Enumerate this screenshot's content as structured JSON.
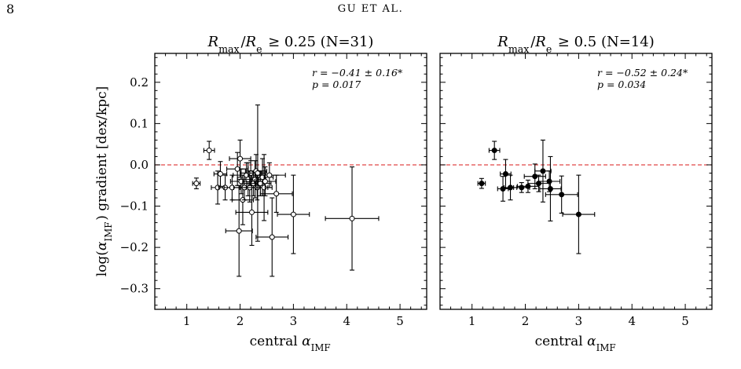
{
  "page": {
    "page_number": "8",
    "running_head": "GU ET AL."
  },
  "chart_data": [
    {
      "type": "scatter",
      "title": "R_max/R_e ≥ 0.25  (N=31)",
      "xlabel": "central α_IMF",
      "ylabel": "log(α_IMF) gradient [dex/kpc]",
      "xlim": [
        0.4,
        5.5
      ],
      "ylim": [
        -0.35,
        0.27
      ],
      "xticks": [
        1,
        2,
        3,
        4,
        5
      ],
      "yticks": [
        0.2,
        0.1,
        0.0,
        -0.1,
        -0.2,
        -0.3
      ],
      "ytick_labels": [
        "0.2",
        "0.1",
        "0.0",
        "−0.1",
        "−0.2",
        "−0.3"
      ],
      "reference_line": {
        "y": 0.0,
        "style": "dashed",
        "color": "#e04848"
      },
      "annotation": {
        "r_text": "r = −0.41 ± 0.16*",
        "p_text": "p = 0.017"
      },
      "marker": "open circle",
      "grid": false,
      "points": [
        {
          "x": 1.18,
          "y": -0.045,
          "xerr": 0.07,
          "yerr": 0.013
        },
        {
          "x": 1.42,
          "y": 0.035,
          "xerr": 0.1,
          "yerr": 0.022
        },
        {
          "x": 1.58,
          "y": -0.055,
          "xerr": 0.12,
          "yerr": 0.04
        },
        {
          "x": 1.63,
          "y": -0.022,
          "xerr": 0.12,
          "yerr": 0.03
        },
        {
          "x": 1.72,
          "y": -0.055,
          "xerr": 0.12,
          "yerr": 0.03
        },
        {
          "x": 1.85,
          "y": -0.055,
          "xerr": 0.15,
          "yerr": 0.03
        },
        {
          "x": 1.95,
          "y": -0.01,
          "xerr": 0.2,
          "yerr": 0.04
        },
        {
          "x": 1.98,
          "y": -0.16,
          "xerr": 0.25,
          "yerr": 0.11
        },
        {
          "x": 2.0,
          "y": 0.015,
          "xerr": 0.2,
          "yerr": 0.045
        },
        {
          "x": 2.02,
          "y": -0.04,
          "xerr": 0.2,
          "yerr": 0.03
        },
        {
          "x": 2.05,
          "y": -0.085,
          "xerr": 0.2,
          "yerr": 0.06
        },
        {
          "x": 2.08,
          "y": -0.055,
          "xerr": 0.2,
          "yerr": 0.03
        },
        {
          "x": 2.12,
          "y": -0.025,
          "xerr": 0.25,
          "yerr": 0.03
        },
        {
          "x": 2.15,
          "y": -0.035,
          "xerr": 0.2,
          "yerr": 0.04
        },
        {
          "x": 2.18,
          "y": -0.055,
          "xerr": 0.2,
          "yerr": 0.035
        },
        {
          "x": 2.2,
          "y": -0.02,
          "xerr": 0.2,
          "yerr": 0.03
        },
        {
          "x": 2.22,
          "y": -0.115,
          "xerr": 0.3,
          "yerr": 0.08
        },
        {
          "x": 2.25,
          "y": -0.045,
          "xerr": 0.2,
          "yerr": 0.03
        },
        {
          "x": 2.28,
          "y": -0.035,
          "xerr": 0.2,
          "yerr": 0.045
        },
        {
          "x": 2.3,
          "y": -0.015,
          "xerr": 0.2,
          "yerr": 0.04
        },
        {
          "x": 2.32,
          "y": -0.055,
          "xerr": 0.2,
          "yerr": 0.03
        },
        {
          "x": 2.33,
          "y": -0.02,
          "xerr": 0.15,
          "yerr": 0.165
        },
        {
          "x": 2.38,
          "y": -0.045,
          "xerr": 0.2,
          "yerr": 0.03
        },
        {
          "x": 2.42,
          "y": -0.03,
          "xerr": 0.2,
          "yerr": 0.045
        },
        {
          "x": 2.45,
          "y": -0.055,
          "xerr": 0.15,
          "yerr": 0.08
        },
        {
          "x": 2.47,
          "y": -0.04,
          "xerr": 0.2,
          "yerr": 0.035
        },
        {
          "x": 2.55,
          "y": -0.025,
          "xerr": 0.3,
          "yerr": 0.03
        },
        {
          "x": 2.6,
          "y": -0.175,
          "xerr": 0.3,
          "yerr": 0.095
        },
        {
          "x": 2.68,
          "y": -0.07,
          "xerr": 0.3,
          "yerr": 0.045
        },
        {
          "x": 3.0,
          "y": -0.12,
          "xerr": 0.3,
          "yerr": 0.095
        },
        {
          "x": 4.1,
          "y": -0.13,
          "xerr": 0.5,
          "yerr": 0.125
        }
      ]
    },
    {
      "type": "scatter",
      "title": "R_max/R_e ≥ 0.5  (N=14)",
      "xlabel": "central α_IMF",
      "ylabel": "",
      "xlim": [
        0.4,
        5.5
      ],
      "ylim": [
        -0.35,
        0.27
      ],
      "xticks": [
        1,
        2,
        3,
        4,
        5
      ],
      "yticks": [
        0.2,
        0.1,
        0.0,
        -0.1,
        -0.2,
        -0.3
      ],
      "reference_line": {
        "y": 0.0,
        "style": "dashed",
        "color": "#e04848"
      },
      "annotation": {
        "r_text": "r = −0.52 ± 0.24*",
        "p_text": "p = 0.034"
      },
      "marker": "filled circle",
      "grid": false,
      "points": [
        {
          "x": 1.18,
          "y": -0.045,
          "xerr": 0.07,
          "yerr": 0.012
        },
        {
          "x": 1.42,
          "y": 0.035,
          "xerr": 0.1,
          "yerr": 0.022
        },
        {
          "x": 1.58,
          "y": -0.058,
          "xerr": 0.1,
          "yerr": 0.03
        },
        {
          "x": 1.63,
          "y": -0.022,
          "xerr": 0.1,
          "yerr": 0.035
        },
        {
          "x": 1.72,
          "y": -0.055,
          "xerr": 0.12,
          "yerr": 0.03
        },
        {
          "x": 1.93,
          "y": -0.055,
          "xerr": 0.15,
          "yerr": 0.012
        },
        {
          "x": 2.05,
          "y": -0.052,
          "xerr": 0.2,
          "yerr": 0.015
        },
        {
          "x": 2.18,
          "y": -0.028,
          "xerr": 0.2,
          "yerr": 0.03
        },
        {
          "x": 2.25,
          "y": -0.045,
          "xerr": 0.2,
          "yerr": 0.02
        },
        {
          "x": 2.33,
          "y": -0.015,
          "xerr": 0.15,
          "yerr": 0.075
        },
        {
          "x": 2.45,
          "y": -0.04,
          "xerr": 0.2,
          "yerr": 0.025
        },
        {
          "x": 2.47,
          "y": -0.058,
          "xerr": 0.2,
          "yerr": 0.078
        },
        {
          "x": 2.68,
          "y": -0.072,
          "xerr": 0.3,
          "yerr": 0.045
        },
        {
          "x": 3.0,
          "y": -0.12,
          "xerr": 0.3,
          "yerr": 0.095
        }
      ]
    }
  ]
}
